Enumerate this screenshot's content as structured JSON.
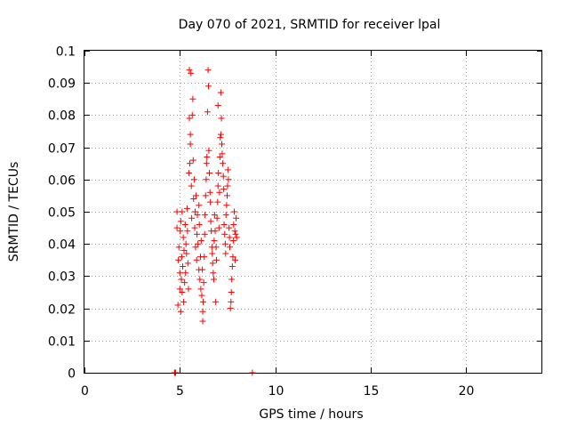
{
  "chart_data": {
    "type": "scatter",
    "title": "Day 070 of 2021, SRMTID for receiver lpal",
    "xlabel": "GPS time / hours",
    "ylabel": "SRMTID / TECUs",
    "xlim": [
      0,
      24
    ],
    "ylim": [
      0,
      0.1
    ],
    "grid": true,
    "marker": "plus",
    "color": "#ff0000",
    "xticks": [
      0,
      5,
      10,
      15,
      20
    ],
    "yticks": [
      0,
      0.01,
      0.02,
      0.03,
      0.04,
      0.05,
      0.06,
      0.07,
      0.08,
      0.09,
      0.1
    ],
    "xtick_labels": [
      "0",
      "5",
      "10",
      "15",
      "20"
    ],
    "ytick_labels": [
      "0",
      "0.01",
      "0.02",
      "0.03",
      "0.04",
      "0.05",
      "0.06",
      "0.07",
      "0.08",
      "0.09",
      "0.1"
    ],
    "series": [
      {
        "points": [
          [
            4.72,
            0.0
          ],
          [
            4.75,
            0.0
          ],
          [
            4.78,
            0.0
          ],
          [
            8.8,
            0.0
          ],
          [
            4.85,
            0.045
          ],
          [
            4.85,
            0.05
          ],
          [
            4.9,
            0.021
          ],
          [
            4.92,
            0.035
          ],
          [
            4.95,
            0.039
          ],
          [
            5.0,
            0.026
          ],
          [
            5.0,
            0.031
          ],
          [
            5.02,
            0.044
          ],
          [
            5.05,
            0.019
          ],
          [
            5.05,
            0.047
          ],
          [
            5.08,
            0.029
          ],
          [
            5.1,
            0.036
          ],
          [
            5.12,
            0.05
          ],
          [
            5.12,
            0.025
          ],
          [
            5.15,
            0.033
          ],
          [
            5.18,
            0.042
          ],
          [
            5.2,
            0.022
          ],
          [
            5.22,
            0.038
          ],
          [
            5.25,
            0.028
          ],
          [
            5.28,
            0.046
          ],
          [
            5.3,
            0.031
          ],
          [
            5.32,
            0.04
          ],
          [
            5.35,
            0.037
          ],
          [
            5.38,
            0.051
          ],
          [
            5.4,
            0.044
          ],
          [
            5.42,
            0.034
          ],
          [
            5.45,
            0.026
          ],
          [
            5.48,
            0.062
          ],
          [
            5.5,
            0.079
          ],
          [
            5.5,
            0.094
          ],
          [
            5.52,
            0.065
          ],
          [
            5.55,
            0.071
          ],
          [
            5.55,
            0.074
          ],
          [
            5.58,
            0.093
          ],
          [
            5.6,
            0.058
          ],
          [
            5.62,
            0.048
          ],
          [
            5.65,
            0.08
          ],
          [
            5.68,
            0.085
          ],
          [
            5.7,
            0.066
          ],
          [
            5.72,
            0.054
          ],
          [
            5.75,
            0.06
          ],
          [
            5.78,
            0.045
          ],
          [
            5.8,
            0.05
          ],
          [
            5.82,
            0.039
          ],
          [
            5.85,
            0.055
          ],
          [
            5.88,
            0.035
          ],
          [
            5.9,
            0.043
          ],
          [
            5.92,
            0.049
          ],
          [
            5.95,
            0.04
          ],
          [
            6.0,
            0.032
          ],
          [
            6.0,
            0.052
          ],
          [
            6.02,
            0.046
          ],
          [
            6.05,
            0.029
          ],
          [
            6.08,
            0.036
          ],
          [
            6.1,
            0.026
          ],
          [
            6.12,
            0.041
          ],
          [
            6.15,
            0.024
          ],
          [
            6.18,
            0.032
          ],
          [
            6.2,
            0.019
          ],
          [
            6.2,
            0.016
          ],
          [
            6.22,
            0.022
          ],
          [
            6.25,
            0.028
          ],
          [
            6.28,
            0.036
          ],
          [
            6.3,
            0.043
          ],
          [
            6.32,
            0.049
          ],
          [
            6.35,
            0.055
          ],
          [
            6.38,
            0.06
          ],
          [
            6.4,
            0.065
          ],
          [
            6.42,
            0.067
          ],
          [
            6.45,
            0.081
          ],
          [
            6.48,
            0.094
          ],
          [
            6.5,
            0.089
          ],
          [
            6.52,
            0.069
          ],
          [
            6.55,
            0.062
          ],
          [
            6.58,
            0.056
          ],
          [
            6.6,
            0.053
          ],
          [
            6.62,
            0.047
          ],
          [
            6.65,
            0.044
          ],
          [
            6.68,
            0.039
          ],
          [
            6.7,
            0.037
          ],
          [
            6.72,
            0.034
          ],
          [
            6.75,
            0.031
          ],
          [
            6.78,
            0.029
          ],
          [
            6.8,
            0.041
          ],
          [
            6.82,
            0.049
          ],
          [
            6.85,
            0.044
          ],
          [
            6.88,
            0.022
          ],
          [
            6.9,
            0.039
          ],
          [
            6.92,
            0.035
          ],
          [
            6.95,
            0.048
          ],
          [
            6.98,
            0.053
          ],
          [
            7.0,
            0.058
          ],
          [
            7.0,
            0.083
          ],
          [
            7.02,
            0.062
          ],
          [
            7.05,
            0.045
          ],
          [
            7.08,
            0.056
          ],
          [
            7.1,
            0.067
          ],
          [
            7.12,
            0.073
          ],
          [
            7.15,
            0.074
          ],
          [
            7.15,
            0.087
          ],
          [
            7.18,
            0.079
          ],
          [
            7.2,
            0.071
          ],
          [
            7.22,
            0.068
          ],
          [
            7.25,
            0.065
          ],
          [
            7.28,
            0.061
          ],
          [
            7.3,
            0.057
          ],
          [
            7.32,
            0.046
          ],
          [
            7.35,
            0.043
          ],
          [
            7.38,
            0.04
          ],
          [
            7.4,
            0.037
          ],
          [
            7.42,
            0.049
          ],
          [
            7.45,
            0.052
          ],
          [
            7.48,
            0.055
          ],
          [
            7.5,
            0.058
          ],
          [
            7.52,
            0.063
          ],
          [
            7.55,
            0.06
          ],
          [
            7.58,
            0.045
          ],
          [
            7.6,
            0.042
          ],
          [
            7.62,
            0.039
          ],
          [
            7.65,
            0.02
          ],
          [
            7.68,
            0.022
          ],
          [
            7.7,
            0.025
          ],
          [
            7.72,
            0.029
          ],
          [
            7.75,
            0.033
          ],
          [
            7.78,
            0.036
          ],
          [
            7.8,
            0.041
          ],
          [
            7.82,
            0.046
          ],
          [
            7.85,
            0.05
          ],
          [
            7.88,
            0.044
          ],
          [
            7.9,
            0.035
          ],
          [
            7.92,
            0.043
          ],
          [
            7.95,
            0.048
          ],
          [
            7.98,
            0.042
          ]
        ]
      }
    ]
  }
}
